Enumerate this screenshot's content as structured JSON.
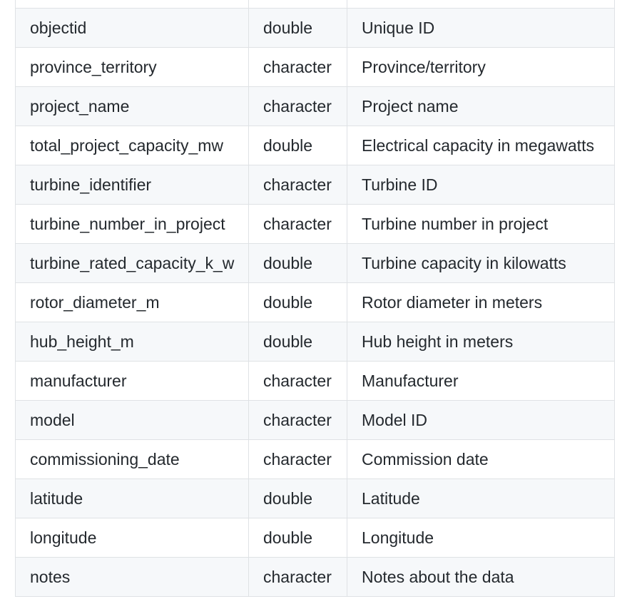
{
  "table": {
    "columns": [
      "",
      "",
      ""
    ],
    "rows": [
      [
        "objectid",
        "double",
        "Unique ID"
      ],
      [
        "province_territory",
        "character",
        "Province/territory"
      ],
      [
        "project_name",
        "character",
        "Project name"
      ],
      [
        "total_project_capacity_mw",
        "double",
        "Electrical capacity in megawatts"
      ],
      [
        "turbine_identifier",
        "character",
        "Turbine ID"
      ],
      [
        "turbine_number_in_project",
        "character",
        "Turbine number in project"
      ],
      [
        "turbine_rated_capacity_k_w",
        "double",
        "Turbine capacity in kilowatts"
      ],
      [
        "rotor_diameter_m",
        "double",
        "Rotor diameter in meters"
      ],
      [
        "hub_height_m",
        "double",
        "Hub height in meters"
      ],
      [
        "manufacturer",
        "character",
        "Manufacturer"
      ],
      [
        "model",
        "character",
        "Model ID"
      ],
      [
        "commissioning_date",
        "character",
        "Commission date"
      ],
      [
        "latitude",
        "double",
        "Latitude"
      ],
      [
        "longitude",
        "double",
        "Longitude"
      ],
      [
        "notes",
        "character",
        "Notes about the data"
      ]
    ]
  }
}
